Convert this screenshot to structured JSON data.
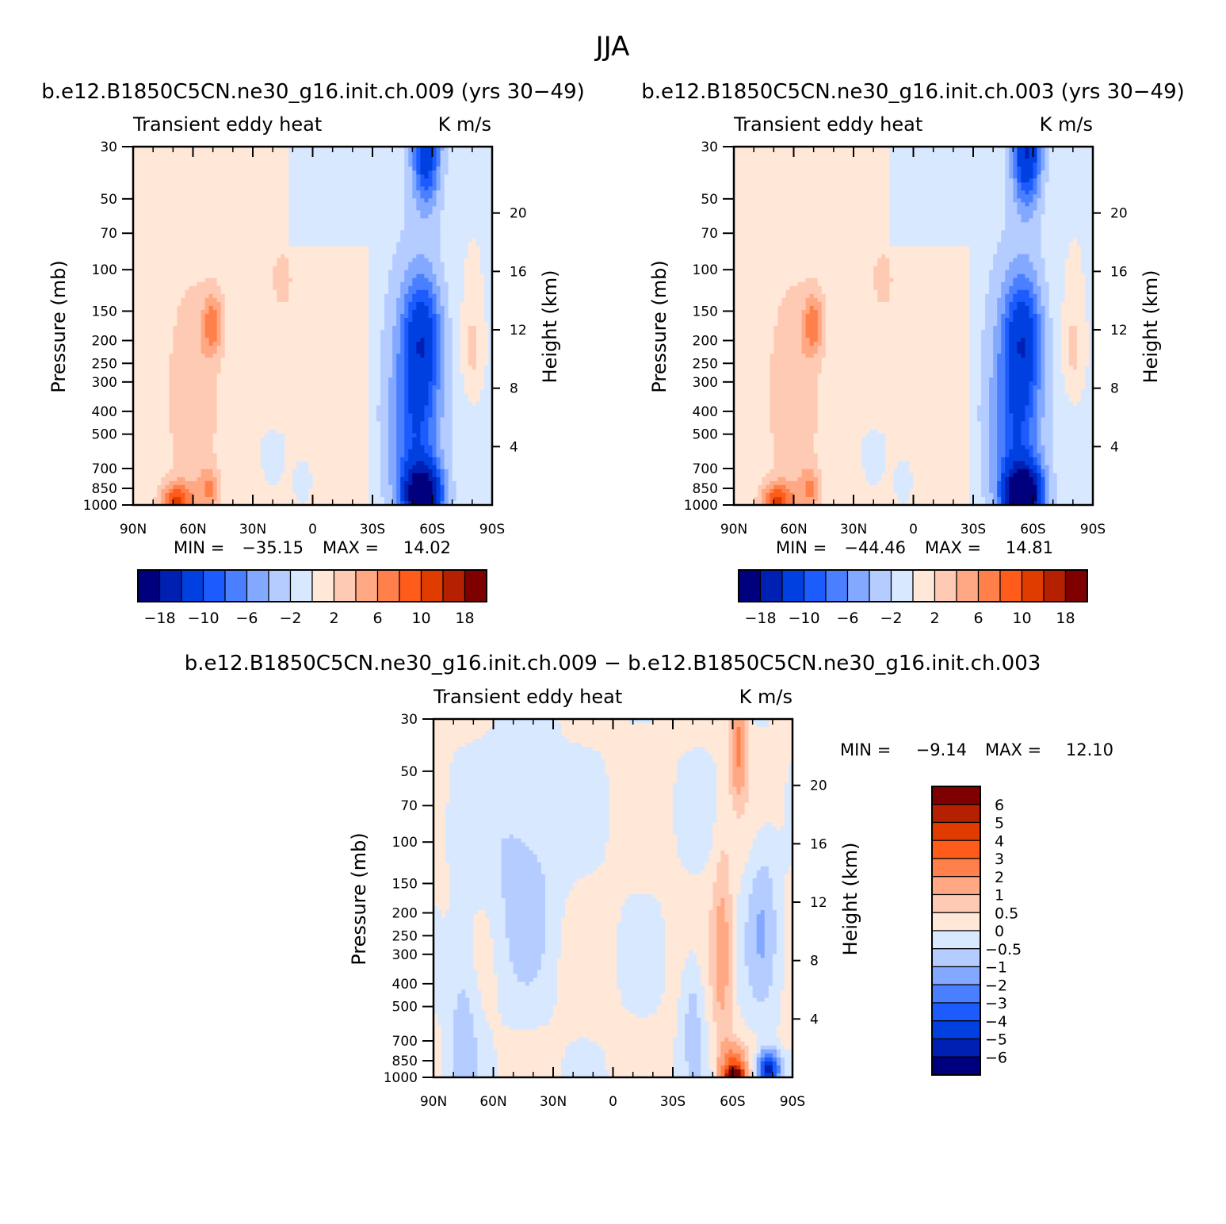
{
  "figure": {
    "season_title": "JJA"
  },
  "colors": {
    "palette": [
      "#00007f",
      "#0020b4",
      "#0040e0",
      "#1c5cff",
      "#4a80ff",
      "#83a8ff",
      "#b4ccff",
      "#d8e8ff",
      "#ffe8d8",
      "#ffcab4",
      "#ffa883",
      "#ff804a",
      "#ff5c1c",
      "#e03c00",
      "#b42000",
      "#7f0000"
    ],
    "frame": "#000000"
  },
  "chart_data": [
    {
      "type": "heatmap",
      "case_title": "b.e12.B1850C5CN.ne30_g16.init.ch.009 (yrs 30−49)",
      "left_label": "Transient eddy heat",
      "right_label": "K m/s",
      "ylabel": "Pressure (mb)",
      "ylabel_right": "Height (km)",
      "x_ticks": [
        "90N",
        "60N",
        "30N",
        "0",
        "30S",
        "60S",
        "90S"
      ],
      "y_ticks": [
        "30",
        "50",
        "70",
        "100",
        "150",
        "200",
        "250",
        "300",
        "400",
        "500",
        "700",
        "850",
        "1000"
      ],
      "y_right_ticks": [
        "20",
        "16",
        "12",
        "8",
        "4"
      ],
      "stats": {
        "min_label": "MIN =",
        "min": "−35.15",
        "max_label": "MAX =",
        "max": "14.02"
      },
      "colorbar": {
        "orientation": "horizontal",
        "levels": [
          -18,
          -14,
          -10,
          -8,
          -6,
          -4,
          -2,
          0,
          2,
          4,
          6,
          8,
          10,
          14,
          18
        ],
        "tick_labels": [
          "−18",
          "−10",
          "−6",
          "−2",
          "2",
          "6",
          "10",
          "18"
        ]
      },
      "features": [
        {
          "lat": -55,
          "p": 900,
          "v": -22
        },
        {
          "lat": -58,
          "p": 30,
          "v": -14
        },
        {
          "lat": -55,
          "p": 200,
          "v": -10
        },
        {
          "lat": -70,
          "p": 950,
          "v": 8
        },
        {
          "lat": -50,
          "p": 160,
          "v": 6
        },
        {
          "lat": 15,
          "p": 100,
          "v": 2
        },
        {
          "lat": 75,
          "p": 300,
          "v": 2
        }
      ]
    },
    {
      "type": "heatmap",
      "case_title": "b.e12.B1850C5CN.ne30_g16.init.ch.003 (yrs 30−49)",
      "left_label": "Transient eddy heat",
      "right_label": "K m/s",
      "ylabel": "Pressure (mb)",
      "ylabel_right": "Height (km)",
      "x_ticks": [
        "90N",
        "60N",
        "30N",
        "0",
        "30S",
        "60S",
        "90S"
      ],
      "y_ticks": [
        "30",
        "50",
        "70",
        "100",
        "150",
        "200",
        "250",
        "300",
        "400",
        "500",
        "700",
        "850",
        "1000"
      ],
      "y_right_ticks": [
        "20",
        "16",
        "12",
        "8",
        "4"
      ],
      "stats": {
        "min_label": "MIN =",
        "min": "−44.46",
        "max_label": "MAX =",
        "max": "14.81"
      },
      "colorbar": {
        "orientation": "horizontal",
        "levels": [
          -18,
          -14,
          -10,
          -8,
          -6,
          -4,
          -2,
          0,
          2,
          4,
          6,
          8,
          10,
          14,
          18
        ],
        "tick_labels": [
          "−18",
          "−10",
          "−6",
          "−2",
          "2",
          "6",
          "10",
          "18"
        ]
      },
      "features": [
        {
          "lat": -55,
          "p": 900,
          "v": -24
        },
        {
          "lat": -58,
          "p": 30,
          "v": -16
        },
        {
          "lat": -55,
          "p": 200,
          "v": -10
        },
        {
          "lat": -70,
          "p": 950,
          "v": 8
        },
        {
          "lat": -50,
          "p": 160,
          "v": 6
        },
        {
          "lat": 15,
          "p": 100,
          "v": 2
        },
        {
          "lat": 75,
          "p": 300,
          "v": 2
        }
      ]
    },
    {
      "type": "heatmap",
      "case_title": "b.e12.B1850C5CN.ne30_g16.init.ch.009 − b.e12.B1850C5CN.ne30_g16.init.ch.003",
      "left_label": "Transient eddy heat",
      "right_label": "K m/s",
      "ylabel": "Pressure (mb)",
      "ylabel_right": "Height (km)",
      "x_ticks": [
        "90N",
        "60N",
        "30N",
        "0",
        "30S",
        "60S",
        "90S"
      ],
      "y_ticks": [
        "30",
        "50",
        "70",
        "100",
        "150",
        "200",
        "250",
        "300",
        "400",
        "500",
        "700",
        "850",
        "1000"
      ],
      "y_right_ticks": [
        "20",
        "16",
        "12",
        "8",
        "4"
      ],
      "stats": {
        "min_label": "MIN =",
        "min": "−9.14",
        "max_label": "MAX =",
        "max": "12.10"
      },
      "colorbar": {
        "orientation": "vertical",
        "levels": [
          -6,
          -5,
          -4,
          -3,
          -2,
          -1,
          -0.5,
          0,
          0.5,
          1,
          2,
          3,
          4,
          5,
          6
        ],
        "tick_labels": [
          "6",
          "5",
          "4",
          "3",
          "2",
          "1",
          "0.5",
          "0",
          "−0.5",
          "−1",
          "−2",
          "−3",
          "−4",
          "−5",
          "−6"
        ]
      },
      "features": [
        {
          "lat": -60,
          "p": 950,
          "v": 8
        },
        {
          "lat": -78,
          "p": 930,
          "v": -4
        },
        {
          "lat": -63,
          "p": 50,
          "v": 1.5
        },
        {
          "lat": -55,
          "p": 250,
          "v": 1
        },
        {
          "lat": 40,
          "p": 100,
          "v": -0.4
        },
        {
          "lat": -40,
          "p": 400,
          "v": -0.4
        }
      ]
    }
  ]
}
